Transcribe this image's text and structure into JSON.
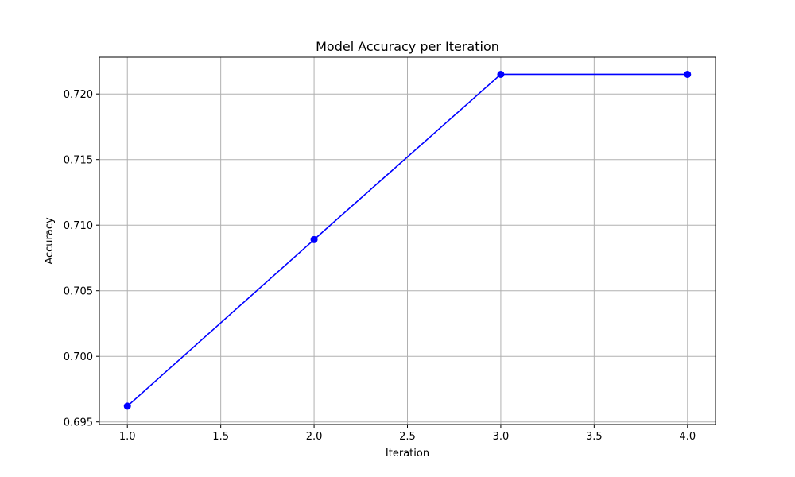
{
  "chart_data": {
    "type": "line",
    "title": "Model Accuracy per Iteration",
    "xlabel": "Iteration",
    "ylabel": "Accuracy",
    "x": [
      1.0,
      2.0,
      3.0,
      4.0
    ],
    "series": [
      {
        "values": [
          0.6962,
          0.7089,
          0.7215,
          0.7215
        ]
      }
    ],
    "xlim": [
      0.85,
      4.15
    ],
    "ylim": [
      0.6948,
      0.7228
    ],
    "xticks": [
      1.0,
      1.5,
      2.0,
      2.5,
      3.0,
      3.5,
      4.0
    ],
    "xtick_labels": [
      "1.0",
      "1.5",
      "2.0",
      "2.5",
      "3.0",
      "3.5",
      "4.0"
    ],
    "yticks": [
      0.695,
      0.7,
      0.705,
      0.71,
      0.715,
      0.72
    ],
    "ytick_labels": [
      "0.695",
      "0.700",
      "0.705",
      "0.710",
      "0.715",
      "0.720"
    ],
    "grid": true,
    "line_color": "#0000ff",
    "marker": "circle",
    "grid_color": "#b0b0b0"
  }
}
